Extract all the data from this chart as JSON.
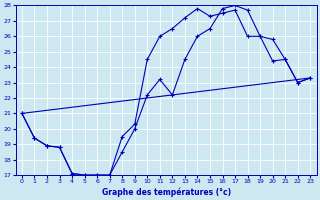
{
  "xlabel": "Graphe des températures (°c)",
  "xlim_min": -0.5,
  "xlim_max": 23.5,
  "ylim_min": 17,
  "ylim_max": 28,
  "yticks": [
    17,
    18,
    19,
    20,
    21,
    22,
    23,
    24,
    25,
    26,
    27,
    28
  ],
  "xticks": [
    0,
    1,
    2,
    3,
    4,
    5,
    6,
    7,
    8,
    9,
    10,
    11,
    12,
    13,
    14,
    15,
    16,
    17,
    18,
    19,
    20,
    21,
    22,
    23
  ],
  "bg_color": "#cde8f0",
  "line_color": "#0000bb",
  "grid_color": "#b8d8e8",
  "line1_x": [
    0,
    1,
    2,
    3,
    4,
    5,
    6,
    7,
    8,
    9,
    10,
    11,
    12,
    13,
    14,
    15,
    16,
    17,
    18,
    19,
    20,
    21,
    22,
    23
  ],
  "line1_y": [
    21.0,
    19.4,
    18.9,
    18.8,
    17.1,
    17.0,
    17.0,
    17.0,
    18.5,
    20.0,
    22.2,
    23.2,
    22.2,
    24.5,
    26.0,
    26.5,
    27.8,
    28.0,
    27.7,
    26.0,
    24.4,
    24.5,
    23.0,
    23.3
  ],
  "line2_x": [
    0,
    1,
    2,
    3,
    4,
    5,
    6,
    7,
    8,
    9,
    10,
    11,
    12,
    13,
    14,
    15,
    16,
    17,
    18,
    19,
    20,
    21,
    22,
    23
  ],
  "line2_y": [
    21.0,
    19.4,
    18.9,
    18.8,
    17.1,
    17.0,
    17.0,
    17.0,
    19.5,
    20.3,
    24.5,
    26.0,
    26.5,
    27.2,
    27.8,
    27.3,
    27.5,
    27.7,
    26.0,
    26.0,
    25.8,
    24.5,
    23.0,
    23.3
  ],
  "line3_x": [
    0,
    23
  ],
  "line3_y": [
    21.0,
    23.3
  ]
}
